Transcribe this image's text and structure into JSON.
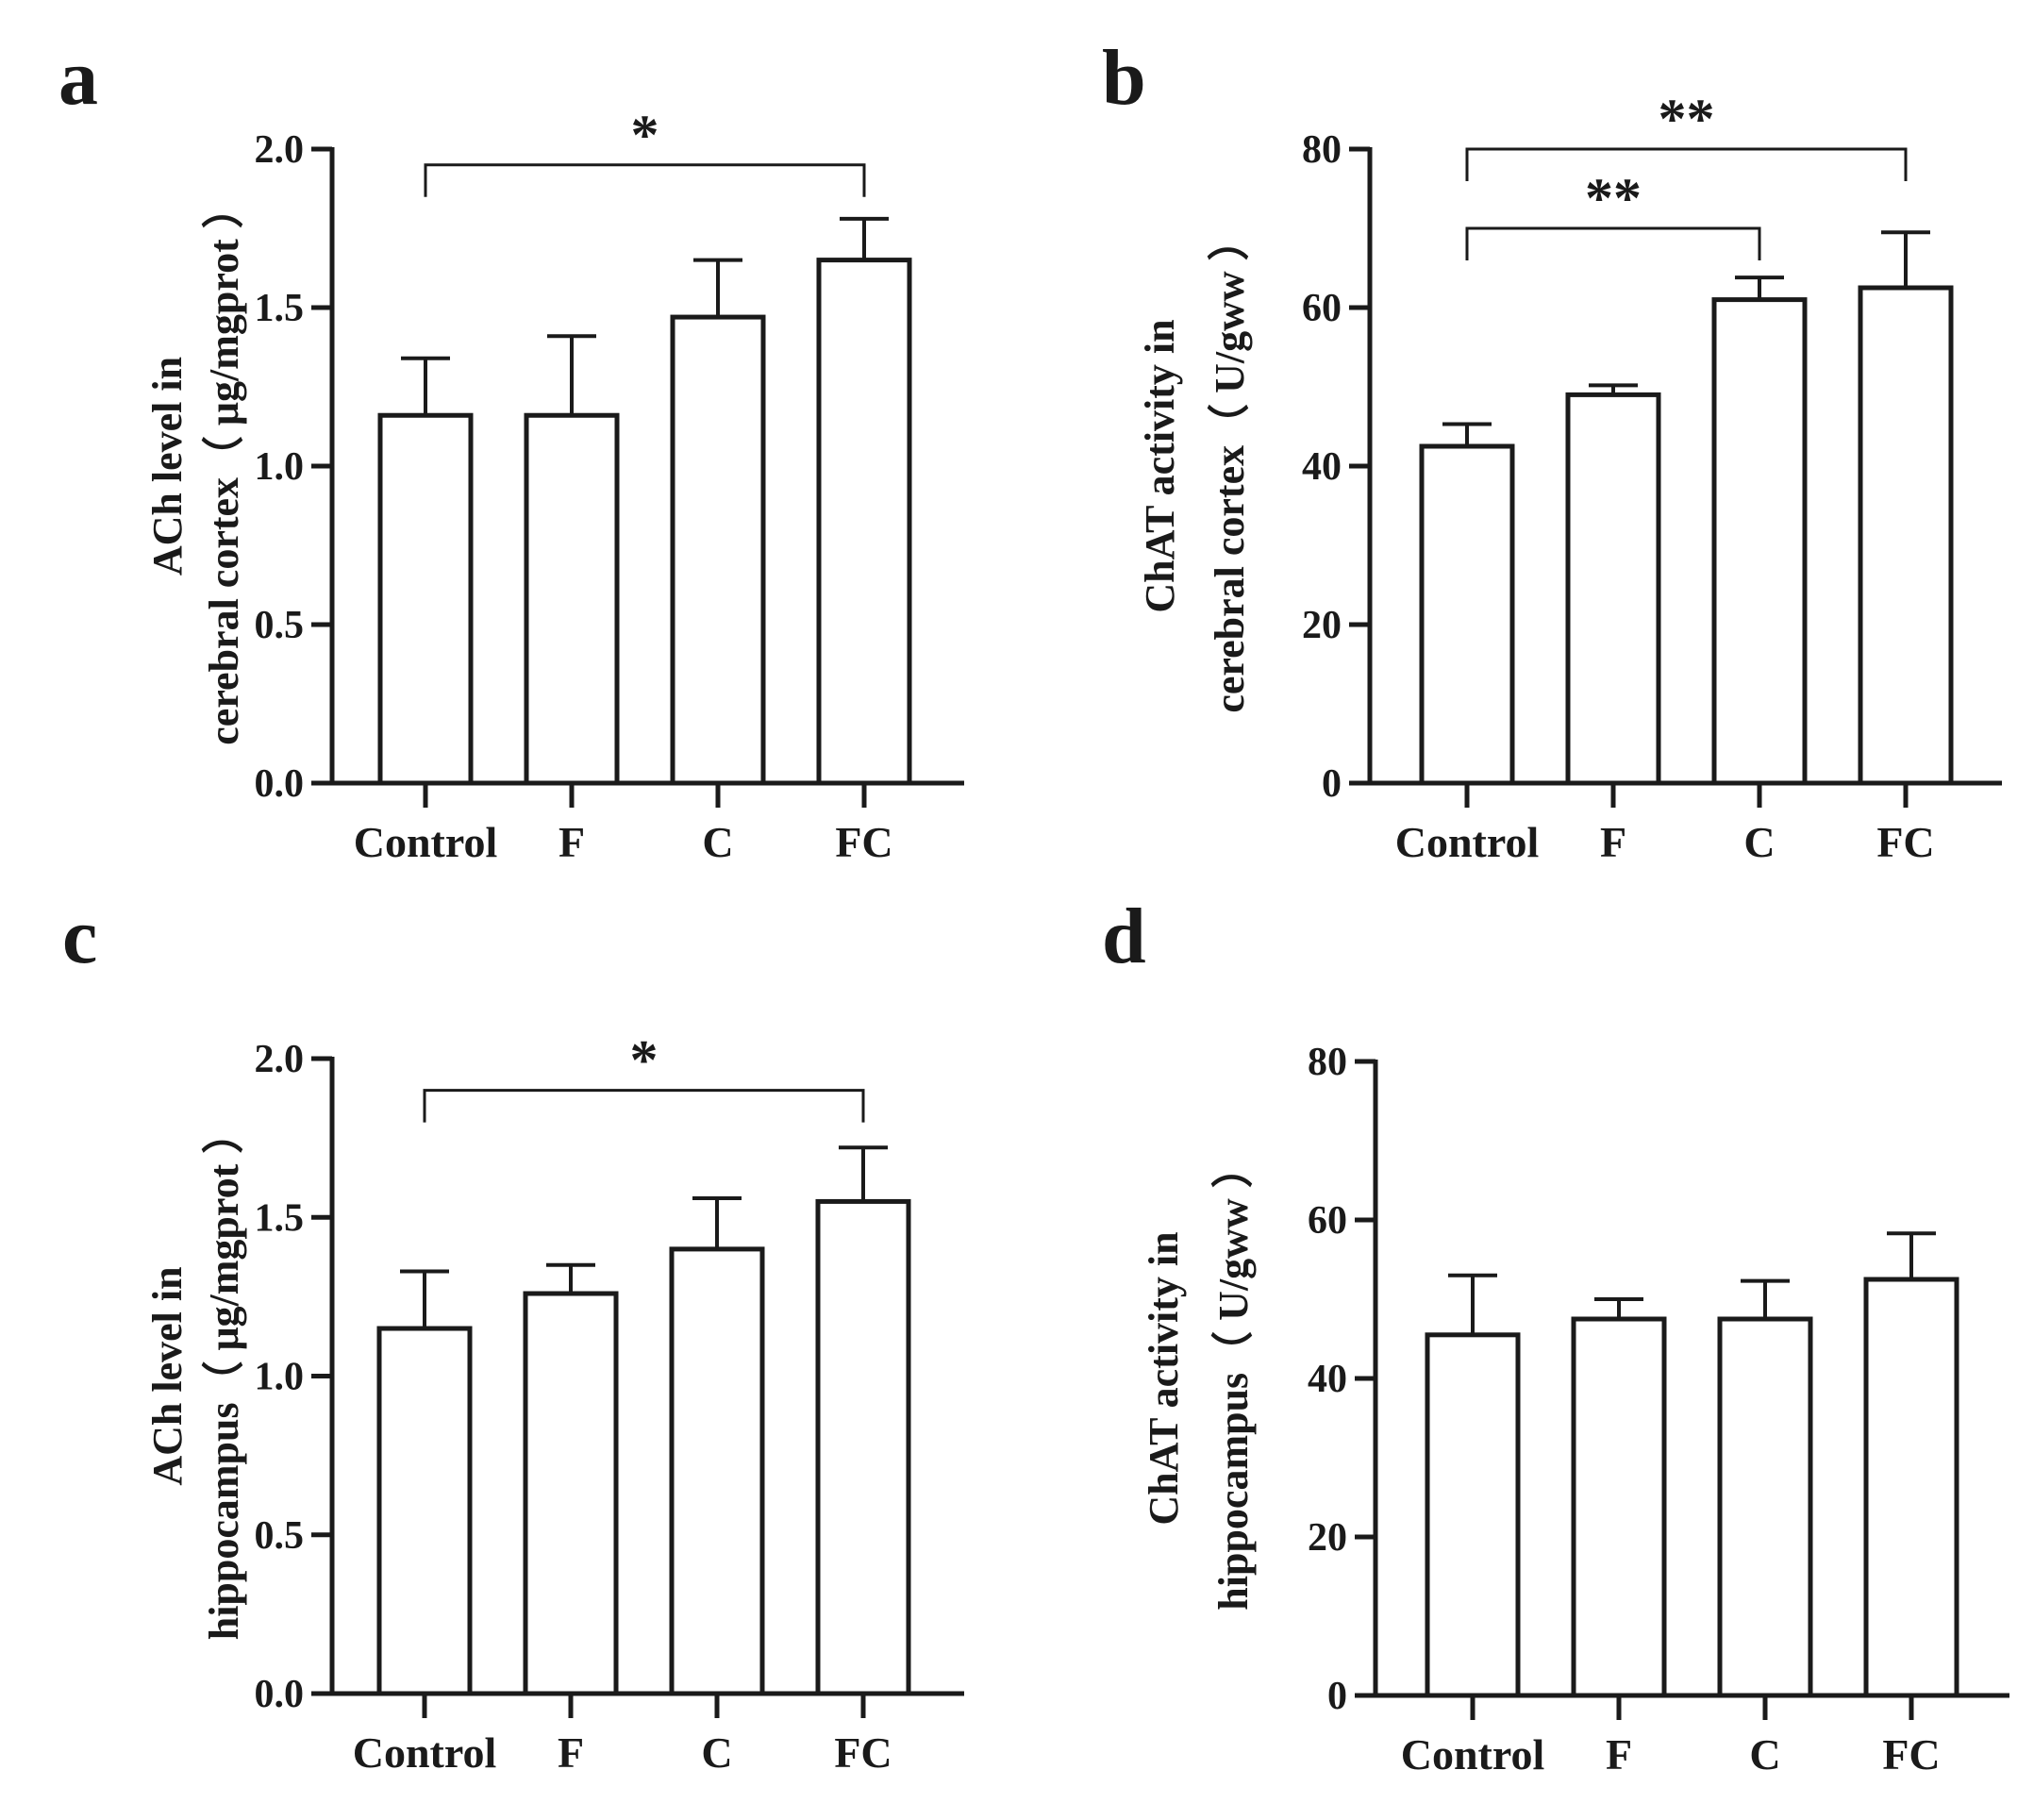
{
  "figure": {
    "panels": [
      "a",
      "b",
      "c",
      "d"
    ]
  },
  "chart_data": [
    {
      "panel": "a",
      "type": "bar",
      "categories": [
        "Control",
        "F",
        "C",
        "FC"
      ],
      "values": [
        1.16,
        1.16,
        1.47,
        1.65
      ],
      "errors": [
        0.18,
        0.25,
        0.18,
        0.13
      ],
      "ylabel_line1": "ACh level in",
      "ylabel_line2": "cerebral cortex（ μg/mgprot ）",
      "ylim": [
        0,
        2.0
      ],
      "yticks": [
        0.0,
        0.5,
        1.0,
        1.5,
        2.0
      ],
      "ytick_labels": [
        "0.0",
        "0.5",
        "1.0",
        "1.5",
        "2.0"
      ],
      "significance": [
        {
          "from": 0,
          "to": 3,
          "y": 1.95,
          "label": "*"
        }
      ]
    },
    {
      "panel": "b",
      "type": "bar",
      "categories": [
        "Control",
        "F",
        "C",
        "FC"
      ],
      "values": [
        42.5,
        49.0,
        61.0,
        62.5
      ],
      "errors": [
        2.8,
        1.2,
        2.8,
        7.0
      ],
      "ylabel_line1": "ChAT activity in",
      "ylabel_line2": "cerebral cortex（ U/gww ）",
      "ylim": [
        0,
        80
      ],
      "yticks": [
        0,
        20,
        40,
        60,
        80
      ],
      "ytick_labels": [
        "0",
        "20",
        "40",
        "60",
        "80"
      ],
      "significance": [
        {
          "from": 0,
          "to": 2,
          "y": 70,
          "label": "**"
        },
        {
          "from": 0,
          "to": 3,
          "y": 80,
          "label": "**"
        }
      ]
    },
    {
      "panel": "c",
      "type": "bar",
      "categories": [
        "Control",
        "F",
        "C",
        "FC"
      ],
      "values": [
        1.15,
        1.26,
        1.4,
        1.55
      ],
      "errors": [
        0.18,
        0.09,
        0.16,
        0.17
      ],
      "ylabel_line1": "ACh level in",
      "ylabel_line2": "hippocampus（ μg/mgprot ）",
      "ylim": [
        0,
        2.0
      ],
      "yticks": [
        0.0,
        0.5,
        1.0,
        1.5,
        2.0
      ],
      "ytick_labels": [
        "0.0",
        "0.5",
        "1.0",
        "1.5",
        "2.0"
      ],
      "significance": [
        {
          "from": 0,
          "to": 3,
          "y": 1.9,
          "label": "*"
        }
      ]
    },
    {
      "panel": "d",
      "type": "bar",
      "categories": [
        "Control",
        "F",
        "C",
        "FC"
      ],
      "values": [
        45.5,
        47.5,
        47.5,
        52.5
      ],
      "errors": [
        7.5,
        2.5,
        4.8,
        5.8
      ],
      "ylabel_line1": "ChAT activity in",
      "ylabel_line2": "hippocampus（ U/gww ）",
      "ylim": [
        0,
        80
      ],
      "yticks": [
        0,
        20,
        40,
        60,
        80
      ],
      "ytick_labels": [
        "0",
        "20",
        "40",
        "60",
        "80"
      ],
      "significance": []
    }
  ]
}
